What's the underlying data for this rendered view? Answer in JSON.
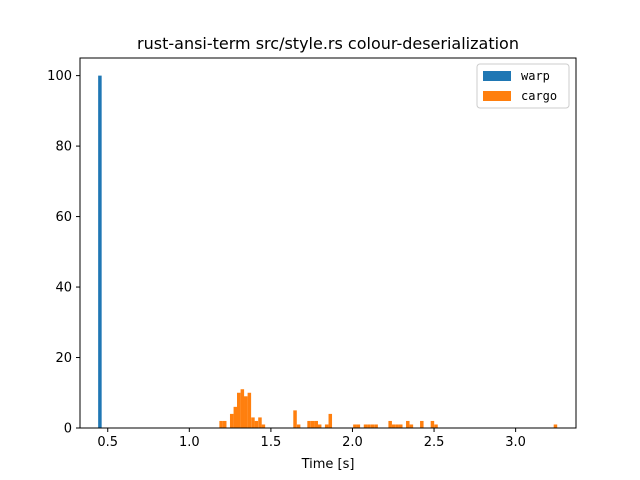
{
  "chart_data": {
    "type": "bar",
    "title": "rust-ansi-term src/style.rs colour-deserialization",
    "xlabel": "Time [s]",
    "ylabel": "",
    "xlim": [
      0.33,
      3.37
    ],
    "ylim": [
      0,
      105
    ],
    "xticks": [
      0.5,
      1.0,
      1.5,
      2.0,
      2.5,
      3.0
    ],
    "xtick_labels": [
      "0.5",
      "1.0",
      "1.5",
      "2.0",
      "2.5",
      "3.0"
    ],
    "yticks": [
      0,
      20,
      40,
      60,
      80,
      100
    ],
    "ytick_labels": [
      "0",
      "20",
      "40",
      "60",
      "80",
      "100"
    ],
    "grid": false,
    "legend_position": "top-right",
    "bin_width": 0.0215,
    "series": [
      {
        "name": "warp",
        "color": "#1f77b4",
        "bins": [
          {
            "x": 0.452,
            "count": 100
          }
        ]
      },
      {
        "name": "cargo",
        "color": "#ff7f0e",
        "bins": [
          {
            "x": 1.195,
            "count": 2
          },
          {
            "x": 1.217,
            "count": 2
          },
          {
            "x": 1.26,
            "count": 4
          },
          {
            "x": 1.282,
            "count": 6
          },
          {
            "x": 1.303,
            "count": 10
          },
          {
            "x": 1.325,
            "count": 11
          },
          {
            "x": 1.346,
            "count": 9
          },
          {
            "x": 1.368,
            "count": 10
          },
          {
            "x": 1.39,
            "count": 3
          },
          {
            "x": 1.411,
            "count": 2
          },
          {
            "x": 1.433,
            "count": 3
          },
          {
            "x": 1.454,
            "count": 1
          },
          {
            "x": 1.648,
            "count": 5
          },
          {
            "x": 1.67,
            "count": 1
          },
          {
            "x": 1.734,
            "count": 2
          },
          {
            "x": 1.756,
            "count": 2
          },
          {
            "x": 1.778,
            "count": 2
          },
          {
            "x": 1.799,
            "count": 1
          },
          {
            "x": 1.842,
            "count": 1
          },
          {
            "x": 1.864,
            "count": 4
          },
          {
            "x": 2.015,
            "count": 1
          },
          {
            "x": 2.036,
            "count": 1
          },
          {
            "x": 2.08,
            "count": 1
          },
          {
            "x": 2.101,
            "count": 1
          },
          {
            "x": 2.123,
            "count": 1
          },
          {
            "x": 2.145,
            "count": 1
          },
          {
            "x": 2.231,
            "count": 2
          },
          {
            "x": 2.252,
            "count": 1
          },
          {
            "x": 2.274,
            "count": 1
          },
          {
            "x": 2.296,
            "count": 1
          },
          {
            "x": 2.339,
            "count": 2
          },
          {
            "x": 2.361,
            "count": 1
          },
          {
            "x": 2.425,
            "count": 2
          },
          {
            "x": 2.49,
            "count": 2
          },
          {
            "x": 2.512,
            "count": 1
          },
          {
            "x": 3.244,
            "count": 1
          }
        ]
      }
    ]
  }
}
